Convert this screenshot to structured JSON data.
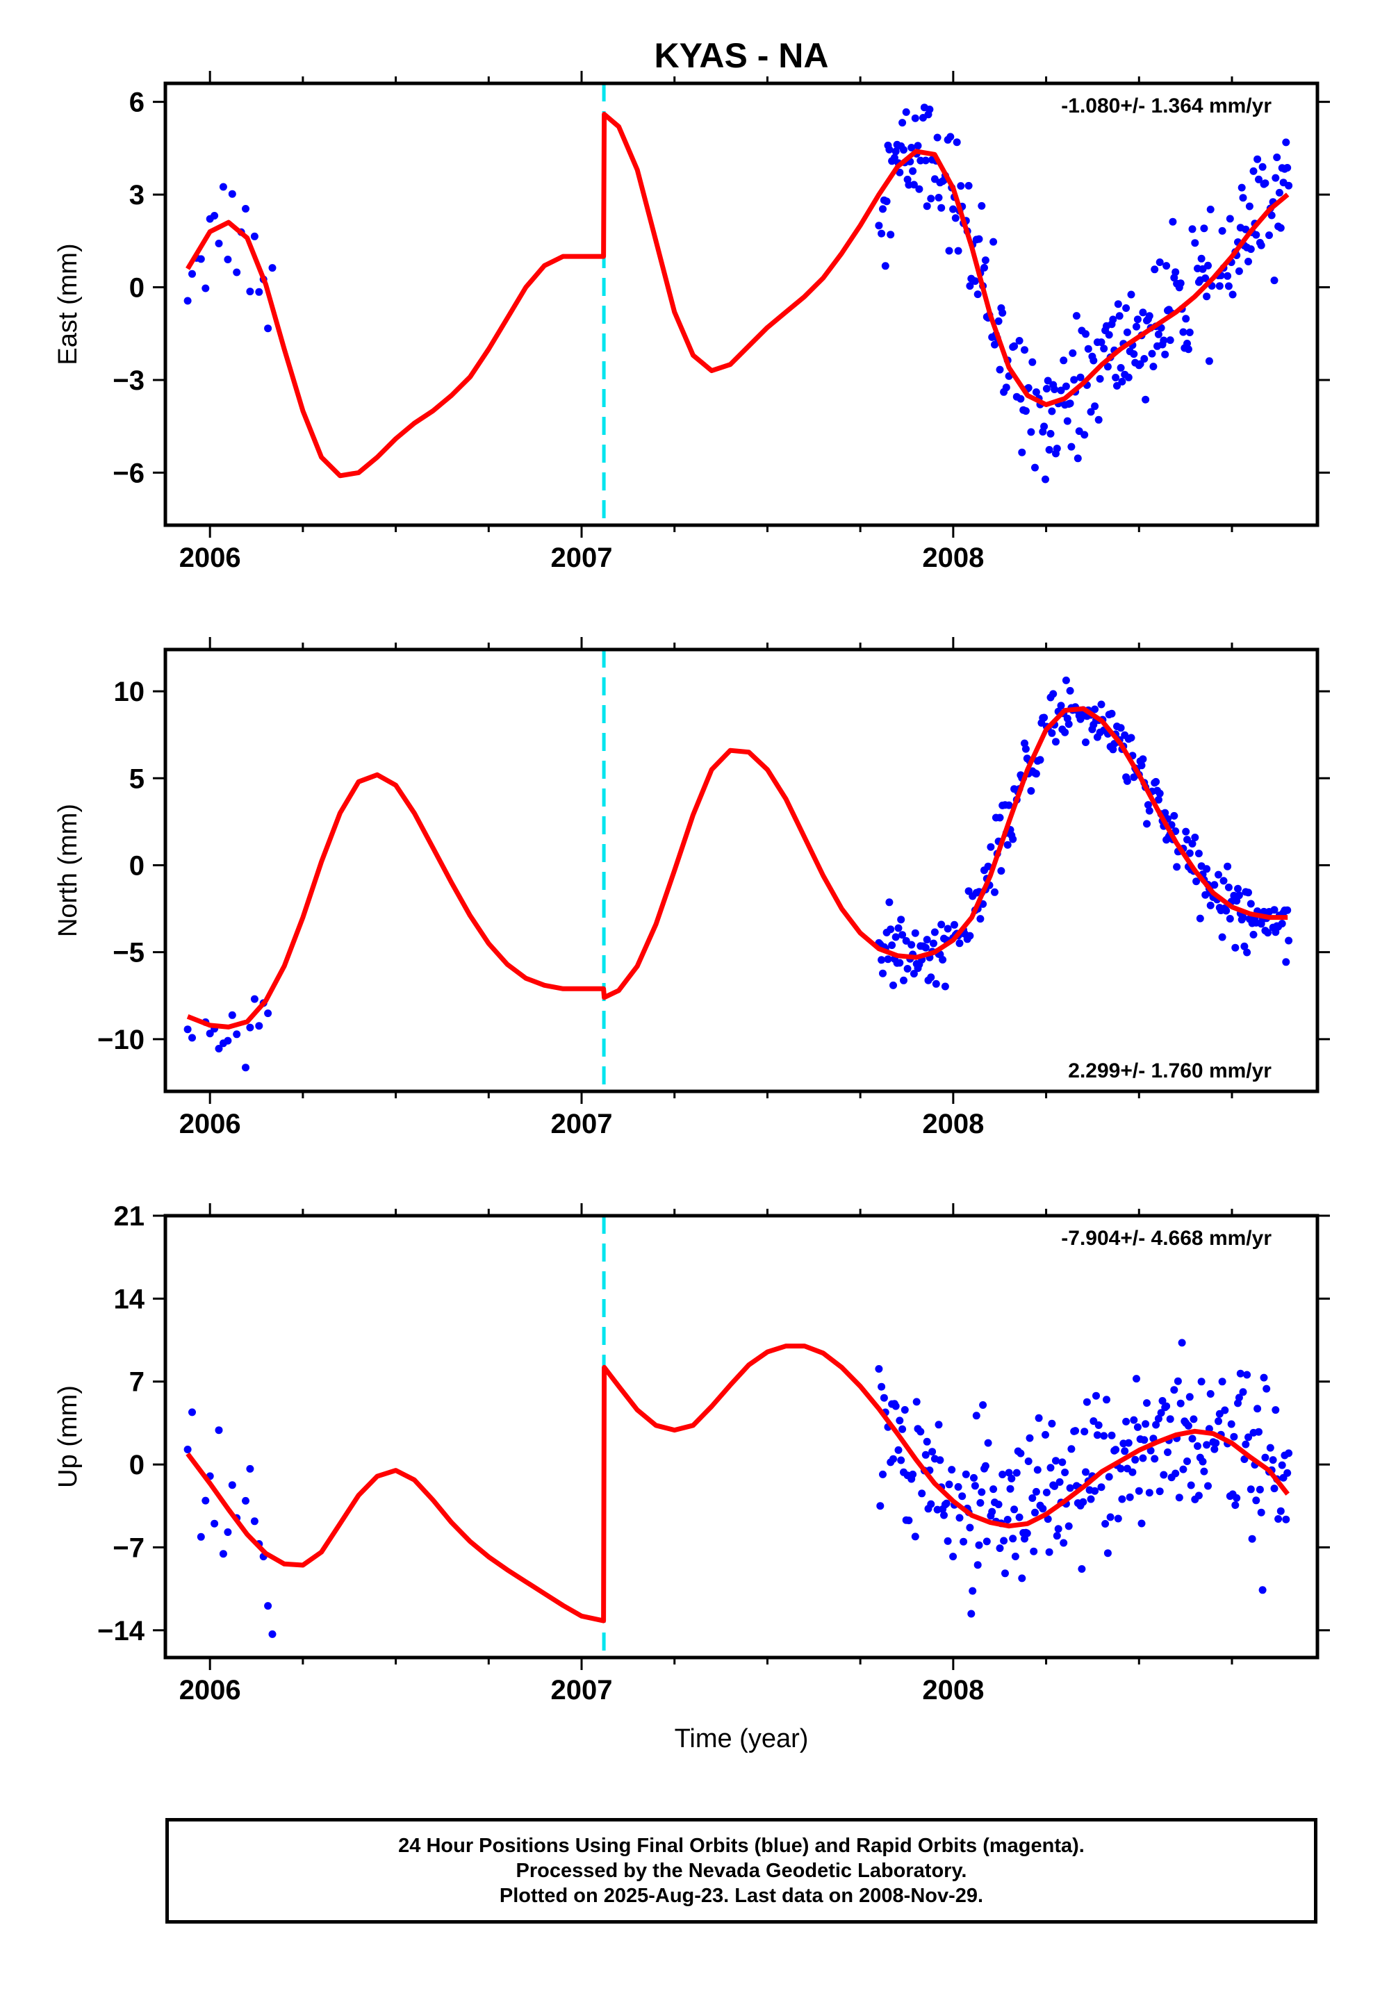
{
  "figure": {
    "title": "KYAS - NA",
    "xlabel": "Time (year)",
    "colors": {
      "model": "#ff0000",
      "final_orbits": "#0000ff",
      "break_line": "#00e5ee",
      "axes": "#000000"
    }
  },
  "caption": {
    "line1": "24 Hour Positions Using Final Orbits (blue) and Rapid Orbits (magenta).",
    "line2": "Processed by the Nevada Geodetic Laboratory.",
    "line3": "Plotted on 2025-Aug-23. Last data on 2008-Nov-29."
  },
  "chart_data": [
    {
      "type": "scatter",
      "component": "east",
      "ylabel": "East (mm)",
      "rate_label": "-1.080+/- 1.364 mm/yr",
      "rate_position": "top-right",
      "xlim": [
        2005.88,
        2008.98
      ],
      "ylim": [
        -7.7,
        6.6
      ],
      "xticks": [
        2006,
        2007,
        2008
      ],
      "yticks": [
        -6,
        -3,
        0,
        3,
        6
      ],
      "break_epoch": 2007.06,
      "model": {
        "name": "model",
        "x": [
          2005.94,
          2006.0,
          2006.05,
          2006.1,
          2006.15,
          2006.2,
          2006.25,
          2006.3,
          2006.35,
          2006.4,
          2006.45,
          2006.5,
          2006.55,
          2006.6,
          2006.65,
          2006.7,
          2006.75,
          2006.8,
          2006.85,
          2006.9,
          2006.95,
          2007.0,
          2007.059,
          2007.061,
          2007.1,
          2007.15,
          2007.2,
          2007.25,
          2007.3,
          2007.35,
          2007.4,
          2007.45,
          2007.5,
          2007.55,
          2007.6,
          2007.65,
          2007.7,
          2007.75,
          2007.8,
          2007.85,
          2007.9,
          2007.95,
          2008.0,
          2008.05,
          2008.1,
          2008.15,
          2008.2,
          2008.25,
          2008.3,
          2008.35,
          2008.4,
          2008.45,
          2008.5,
          2008.55,
          2008.6,
          2008.65,
          2008.7,
          2008.75,
          2008.8,
          2008.85,
          2008.9
        ],
        "y": [
          0.6,
          1.8,
          2.1,
          1.6,
          0.1,
          -2.0,
          -4.0,
          -5.5,
          -6.1,
          -6.0,
          -5.5,
          -4.9,
          -4.4,
          -4.0,
          -3.5,
          -2.9,
          -2.0,
          -1.0,
          0.0,
          0.7,
          1.0,
          1.0,
          1.0,
          5.6,
          5.2,
          3.8,
          1.5,
          -0.8,
          -2.2,
          -2.7,
          -2.5,
          -1.9,
          -1.3,
          -0.8,
          -0.3,
          0.3,
          1.1,
          2.0,
          3.0,
          3.9,
          4.4,
          4.3,
          3.2,
          1.3,
          -0.9,
          -2.6,
          -3.5,
          -3.8,
          -3.6,
          -3.1,
          -2.5,
          -2.0,
          -1.6,
          -1.2,
          -0.8,
          -0.3,
          0.3,
          1.0,
          1.8,
          2.5,
          3.0
        ]
      }
    },
    {
      "type": "scatter",
      "component": "north",
      "ylabel": "North (mm)",
      "rate_label": "2.299+/- 1.760 mm/yr",
      "rate_position": "bottom-right",
      "xlim": [
        2005.88,
        2008.98
      ],
      "ylim": [
        -13.0,
        12.4
      ],
      "xticks": [
        2006,
        2007,
        2008
      ],
      "yticks": [
        -10,
        -5,
        0,
        5,
        10
      ],
      "break_epoch": 2007.06,
      "model": {
        "name": "model",
        "x": [
          2005.94,
          2006.0,
          2006.05,
          2006.1,
          2006.15,
          2006.2,
          2006.25,
          2006.3,
          2006.35,
          2006.4,
          2006.45,
          2006.5,
          2006.55,
          2006.6,
          2006.65,
          2006.7,
          2006.75,
          2006.8,
          2006.85,
          2006.9,
          2006.95,
          2007.0,
          2007.059,
          2007.061,
          2007.1,
          2007.15,
          2007.2,
          2007.25,
          2007.3,
          2007.35,
          2007.4,
          2007.45,
          2007.5,
          2007.55,
          2007.6,
          2007.65,
          2007.7,
          2007.75,
          2007.8,
          2007.85,
          2007.9,
          2007.95,
          2008.0,
          2008.05,
          2008.1,
          2008.15,
          2008.2,
          2008.25,
          2008.3,
          2008.35,
          2008.4,
          2008.45,
          2008.5,
          2008.55,
          2008.6,
          2008.65,
          2008.7,
          2008.75,
          2008.8,
          2008.85,
          2008.9
        ],
        "y": [
          -8.7,
          -9.2,
          -9.3,
          -9.0,
          -7.8,
          -5.8,
          -3.0,
          0.2,
          3.0,
          4.8,
          5.2,
          4.6,
          3.0,
          1.0,
          -1.0,
          -2.9,
          -4.5,
          -5.7,
          -6.5,
          -6.9,
          -7.1,
          -7.1,
          -7.1,
          -7.6,
          -7.2,
          -5.8,
          -3.4,
          -0.3,
          2.9,
          5.5,
          6.6,
          6.5,
          5.5,
          3.8,
          1.6,
          -0.6,
          -2.5,
          -3.9,
          -4.8,
          -5.2,
          -5.3,
          -5.0,
          -4.3,
          -3.0,
          -0.6,
          2.5,
          5.5,
          7.8,
          8.9,
          9.0,
          8.3,
          7.0,
          5.2,
          3.2,
          1.3,
          -0.3,
          -1.6,
          -2.4,
          -2.8,
          -3.0,
          -3.0
        ]
      }
    },
    {
      "type": "scatter",
      "component": "up",
      "ylabel": "Up (mm)",
      "rate_label": "-7.904+/- 4.668 mm/yr",
      "rate_position": "top-right",
      "xlim": [
        2005.88,
        2008.98
      ],
      "ylim": [
        -16.3,
        21.0
      ],
      "xticks": [
        2006,
        2007,
        2008
      ],
      "yticks": [
        -14,
        -7,
        0,
        7,
        14,
        21
      ],
      "break_epoch": 2007.06,
      "model": {
        "name": "model",
        "x": [
          2005.94,
          2006.0,
          2006.05,
          2006.1,
          2006.15,
          2006.2,
          2006.25,
          2006.3,
          2006.35,
          2006.4,
          2006.45,
          2006.5,
          2006.55,
          2006.6,
          2006.65,
          2006.7,
          2006.75,
          2006.8,
          2006.85,
          2006.9,
          2006.95,
          2007.0,
          2007.059,
          2007.061,
          2007.1,
          2007.15,
          2007.2,
          2007.25,
          2007.3,
          2007.35,
          2007.4,
          2007.45,
          2007.5,
          2007.55,
          2007.6,
          2007.65,
          2007.7,
          2007.75,
          2007.8,
          2007.85,
          2007.9,
          2007.95,
          2008.0,
          2008.05,
          2008.1,
          2008.15,
          2008.2,
          2008.25,
          2008.3,
          2008.35,
          2008.4,
          2008.45,
          2008.5,
          2008.55,
          2008.6,
          2008.65,
          2008.7,
          2008.75,
          2008.8,
          2008.85,
          2008.9
        ],
        "y": [
          0.9,
          -1.6,
          -3.8,
          -5.9,
          -7.5,
          -8.4,
          -8.5,
          -7.4,
          -5.0,
          -2.6,
          -1.0,
          -0.5,
          -1.3,
          -3.0,
          -4.9,
          -6.5,
          -7.8,
          -8.9,
          -9.9,
          -10.9,
          -11.9,
          -12.8,
          -13.2,
          8.2,
          6.6,
          4.6,
          3.3,
          2.9,
          3.3,
          4.9,
          6.7,
          8.4,
          9.5,
          10.0,
          10.0,
          9.4,
          8.2,
          6.6,
          4.7,
          2.6,
          0.4,
          -1.6,
          -3.1,
          -4.3,
          -4.9,
          -5.2,
          -5.0,
          -4.2,
          -3.1,
          -1.9,
          -0.6,
          0.3,
          1.2,
          1.9,
          2.5,
          2.8,
          2.6,
          1.8,
          0.6,
          -0.5,
          -2.5
        ]
      }
    }
  ]
}
